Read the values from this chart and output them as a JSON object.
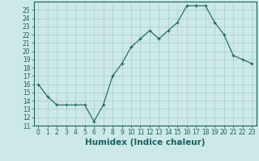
{
  "xlabel": "Humidex (Indice chaleur)",
  "ylabel": "",
  "x": [
    0,
    1,
    2,
    3,
    4,
    5,
    6,
    7,
    8,
    9,
    10,
    11,
    12,
    13,
    14,
    15,
    16,
    17,
    18,
    19,
    20,
    21,
    22,
    23
  ],
  "y": [
    16,
    14.5,
    13.5,
    13.5,
    13.5,
    13.5,
    11.5,
    13.5,
    17,
    18.5,
    20.5,
    21.5,
    22.5,
    21.5,
    22.5,
    23.5,
    25.5,
    25.5,
    25.5,
    23.5,
    22,
    19.5,
    19,
    18.5
  ],
  "xlim": [
    -0.5,
    23.5
  ],
  "ylim": [
    11,
    26
  ],
  "yticks": [
    11,
    12,
    13,
    14,
    15,
    16,
    17,
    18,
    19,
    20,
    21,
    22,
    23,
    24,
    25
  ],
  "xticks": [
    0,
    1,
    2,
    3,
    4,
    5,
    6,
    7,
    8,
    9,
    10,
    11,
    12,
    13,
    14,
    15,
    16,
    17,
    18,
    19,
    20,
    21,
    22,
    23
  ],
  "line_color": "#1a6060",
  "marker": "+",
  "bg_color": "#cce8e8",
  "grid_color": "#aacccc",
  "tick_label_fontsize": 5.5,
  "xlabel_fontsize": 7.5
}
